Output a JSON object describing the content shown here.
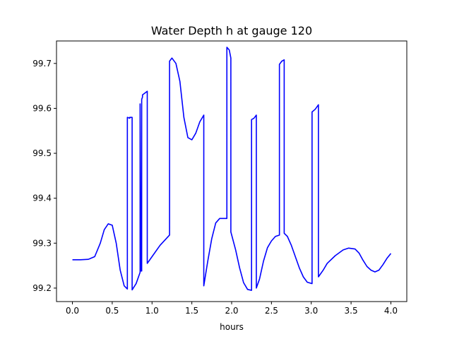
{
  "chart_data": {
    "type": "line",
    "title": "Water Depth h at gauge 120",
    "xlabel": "hours",
    "ylabel": "",
    "xlim": [
      -0.2,
      4.2
    ],
    "ylim": [
      99.17,
      99.75
    ],
    "xticks": [
      "0.0",
      "0.5",
      "1.0",
      "1.5",
      "2.0",
      "2.5",
      "3.0",
      "3.5",
      "4.0"
    ],
    "yticks": [
      "99.2",
      "99.3",
      "99.4",
      "99.5",
      "99.6",
      "99.7"
    ],
    "grid": false,
    "line_color": "#0000ff",
    "series": [
      {
        "x": [
          0.0,
          0.1,
          0.2,
          0.28,
          0.35,
          0.4,
          0.45,
          0.5,
          0.55,
          0.6,
          0.65,
          0.69,
          0.69,
          0.72,
          0.72,
          0.75,
          0.75,
          0.8,
          0.85,
          0.85,
          0.86,
          0.87,
          0.87,
          0.88,
          0.88,
          0.94,
          0.94,
          1.0,
          1.1,
          1.22,
          1.22,
          1.25,
          1.3,
          1.35,
          1.4,
          1.45,
          1.5,
          1.55,
          1.6,
          1.65,
          1.65,
          1.7,
          1.75,
          1.8,
          1.85,
          1.9,
          1.94,
          1.94,
          1.97,
          1.99,
          1.99,
          2.05,
          2.1,
          2.15,
          2.2,
          2.25,
          2.25,
          2.28,
          2.28,
          2.31,
          2.31,
          2.35,
          2.4,
          2.45,
          2.5,
          2.55,
          2.6,
          2.6,
          2.63,
          2.66,
          2.66,
          2.7,
          2.75,
          2.8,
          2.85,
          2.9,
          2.95,
          3.01,
          3.01,
          3.05,
          3.09,
          3.09,
          3.15,
          3.2,
          3.3,
          3.4,
          3.47,
          3.55,
          3.6,
          3.65,
          3.7,
          3.75,
          3.8,
          3.85,
          3.9,
          3.95,
          4.0
        ],
        "y": [
          99.263,
          99.263,
          99.264,
          99.27,
          99.3,
          99.33,
          99.343,
          99.34,
          99.3,
          99.24,
          99.205,
          99.198,
          99.58,
          99.578,
          99.58,
          99.58,
          99.196,
          99.21,
          99.235,
          99.61,
          99.238,
          99.238,
          99.62,
          99.625,
          99.63,
          99.638,
          99.255,
          99.27,
          99.295,
          99.318,
          99.705,
          99.712,
          99.7,
          99.66,
          99.58,
          99.535,
          99.53,
          99.545,
          99.57,
          99.585,
          99.205,
          99.26,
          99.31,
          99.345,
          99.355,
          99.355,
          99.355,
          99.736,
          99.73,
          99.712,
          99.325,
          99.285,
          99.245,
          99.212,
          99.197,
          99.195,
          99.575,
          99.578,
          99.578,
          99.585,
          99.2,
          99.22,
          99.26,
          99.29,
          99.305,
          99.315,
          99.318,
          99.698,
          99.705,
          99.708,
          99.322,
          99.315,
          99.295,
          99.27,
          99.245,
          99.225,
          99.213,
          99.21,
          99.592,
          99.598,
          99.608,
          99.225,
          99.24,
          99.255,
          99.272,
          99.285,
          99.289,
          99.287,
          99.278,
          99.262,
          99.248,
          99.24,
          99.236,
          99.24,
          99.252,
          99.266,
          99.277
        ]
      }
    ]
  }
}
